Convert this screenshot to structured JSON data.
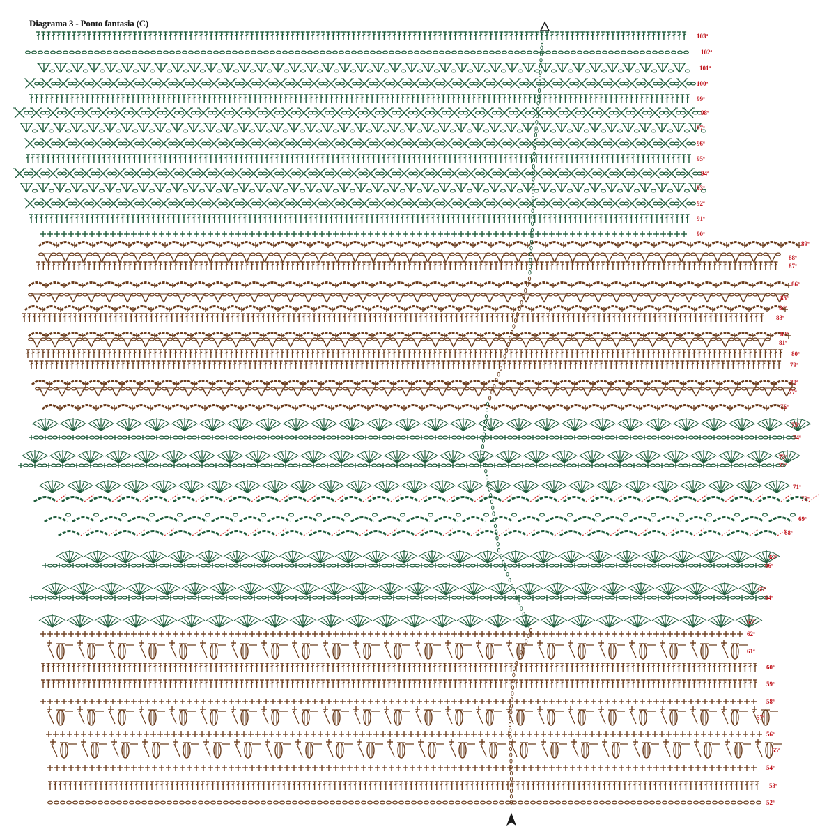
{
  "title": "Diagrama 3 - Ponto fantasia (C)",
  "colors": {
    "green": "#1f5c3c",
    "brown": "#6b3d1e",
    "label": "#c0141c",
    "marker": "#1a1a1a",
    "accent_red": "#d62a2a"
  },
  "row_labels": [
    "103ª",
    "102ª",
    "101ª",
    "100ª",
    "99ª",
    "98ª",
    "97ª",
    "96ª",
    "95ª",
    "94ª",
    "93ª",
    "92ª",
    "91ª",
    "90ª",
    "89ª",
    "88ª",
    "87ª",
    "86ª",
    "85ª",
    "84ª",
    "83ª",
    "82ª",
    "81ª",
    "80ª",
    "79ª",
    "78ª",
    "77ª",
    "76ª",
    "75ª",
    "74ª",
    "73ª",
    "72ª",
    "71ª",
    "70ª",
    "69ª",
    "68ª",
    "67ª",
    "66ª",
    "65ª",
    "64ª",
    "63ª",
    "62ª",
    "61ª",
    "60ª",
    "59ª",
    "58ª",
    "57ª",
    "56ª",
    "55ª",
    "54ª",
    "53ª",
    "52ª"
  ],
  "sections": [
    {
      "name": "upper-green",
      "rows": "90ª–103ª",
      "color": "green"
    },
    {
      "name": "upper-brown",
      "rows": "76ª–89ª",
      "color": "brown"
    },
    {
      "name": "middle-green",
      "rows": "63ª–75ª",
      "color": "green"
    },
    {
      "name": "lower-brown",
      "rows": "52ª–62ª",
      "color": "brown"
    }
  ]
}
